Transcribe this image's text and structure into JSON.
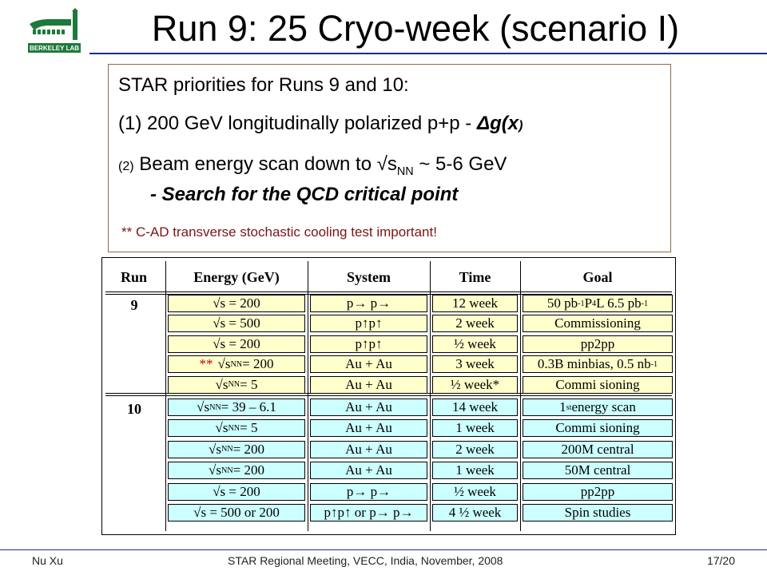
{
  "logo": {
    "text": "BERKELEY LAB",
    "color": "#1e7a3a"
  },
  "title": "Run 9: 25 Cryo-week (scenario I)",
  "box": {
    "line1": "STAR priorities for Runs 9 and 10:",
    "line2_prefix": "(1) 200 GeV longitudinally polarized p+p - ",
    "line2_delta": "Δ",
    "line2_g": "g(x",
    "line2_close": ")",
    "line3_num": "(2)",
    "line3_text": " Beam energy scan down to √s",
    "line3_sub": "NN",
    "line3_end": " ~ 5-6 GeV",
    "line4": "- Search for the QCD critical point",
    "line5": "** C-AD transverse stochastic cooling test important!"
  },
  "table": {
    "headers": {
      "run": "Run",
      "energy": "Energy (GeV)",
      "system": "System",
      "time": "Time",
      "goal": "Goal"
    },
    "run9": "9",
    "run10": "10",
    "rows": [
      {
        "energy_pre": "√s = 200",
        "energy_sub": "",
        "energy_post": "",
        "system": "p→ p→",
        "time": "12 week",
        "goal_a": "50 pb",
        "goal_sup": "-1",
        "goal_b": " P",
        "goal_sup2": "4",
        "goal_c": "L 6.5 pb",
        "goal_sup3": "-1"
      },
      {
        "energy_pre": "√s = 500",
        "energy_sub": "",
        "energy_post": "",
        "system": "p↑p↑",
        "time": "2 week",
        "goal_a": "Commissioning"
      },
      {
        "energy_pre": "√s = 200",
        "energy_sub": "",
        "energy_post": "",
        "system": "p↑p↑",
        "time": "½  week",
        "goal_a": "pp2pp"
      },
      {
        "marker": "**",
        "energy_pre": "√s",
        "energy_sub": "NN",
        "energy_post": " = 200",
        "system": "Au + Au",
        "time": "3 week",
        "goal_a": "0.3B minbias, 0.5 nb",
        "goal_sup": "-1"
      },
      {
        "energy_pre": "√s",
        "energy_sub": "NN",
        "energy_post": " = 5",
        "system": "Au + Au",
        "time": "½  week*",
        "goal_a": "Commi sioning"
      },
      {
        "energy_pre": "√s",
        "energy_sub": "NN",
        "energy_post": " = 39 – 6.1",
        "system": "Au + Au",
        "time": "14 week",
        "goal_a": "1",
        "goal_sup": "st",
        "goal_b": " energy scan"
      },
      {
        "energy_pre": "√s",
        "energy_sub": "NN",
        "energy_post": " = 5",
        "system": "Au + Au",
        "time": "1 week",
        "goal_a": "Commi sioning"
      },
      {
        "energy_pre": "√s",
        "energy_sub": "NN",
        "energy_post": " = 200",
        "system": "Au + Au",
        "time": "2 week",
        "goal_a": "200M central"
      },
      {
        "energy_pre": "√s",
        "energy_sub": "NN",
        "energy_post": " = 200",
        "system": "Au + Au",
        "time": "1 week",
        "goal_a": "50M central"
      },
      {
        "energy_pre": "√s = 200",
        "energy_sub": "",
        "energy_post": "",
        "system": "p→ p→",
        "time": "½   week",
        "goal_a": "pp2pp"
      },
      {
        "energy_pre": "√s = 500 or 200",
        "energy_sub": "",
        "energy_post": "",
        "system": "p↑p↑ or p→ p→",
        "time": "4 ½  week",
        "goal_a": "Spin studies"
      }
    ],
    "colors": {
      "run9": "#ffffcc",
      "run10": "#ccffff"
    }
  },
  "footer": {
    "left": "Nu Xu",
    "center": "STAR Regional Meeting, VECC, India, November, 2008",
    "right": "17/20"
  }
}
